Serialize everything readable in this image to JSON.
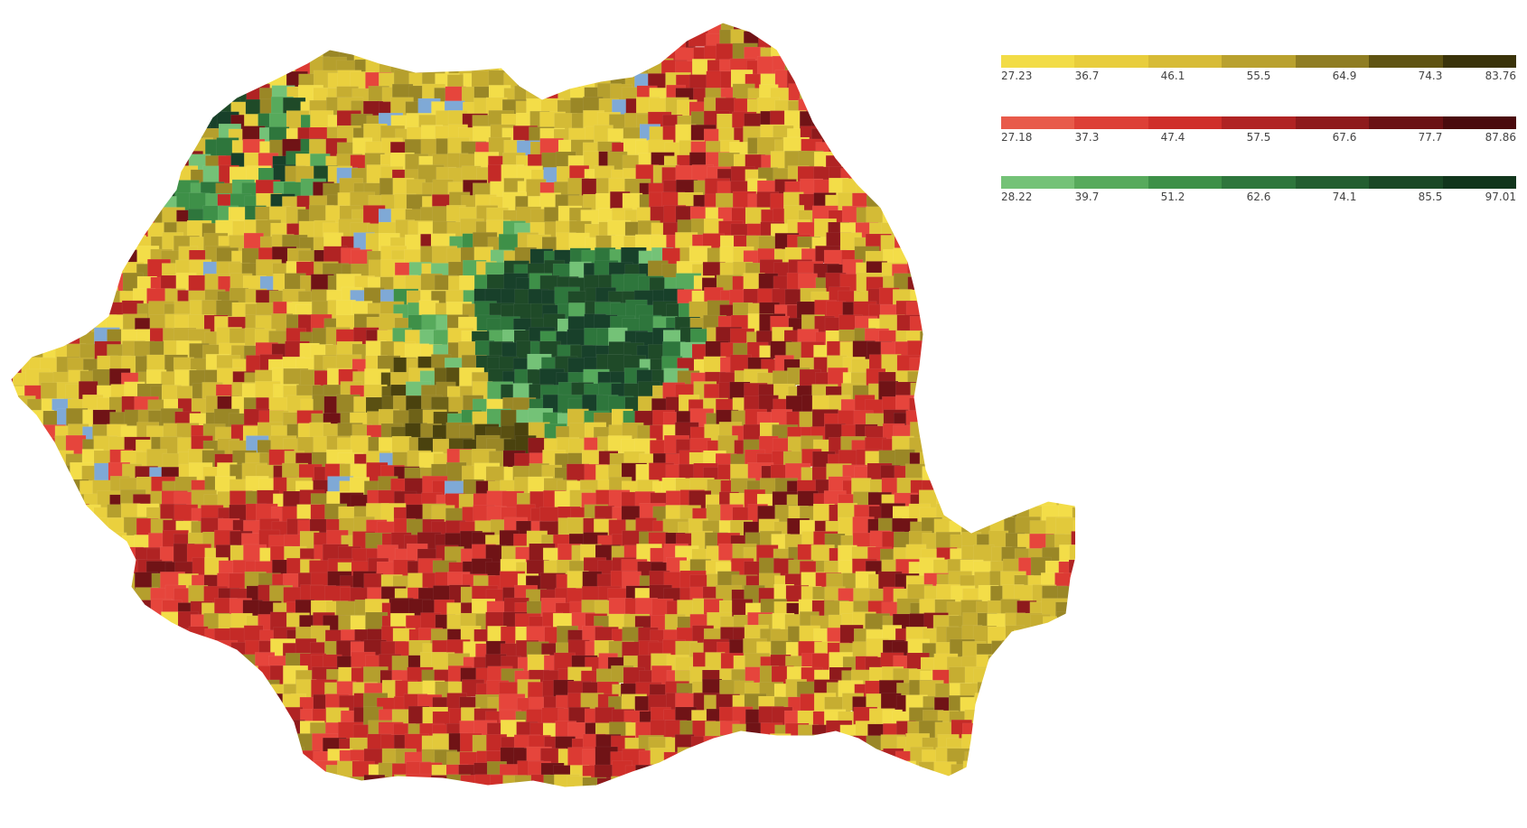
{
  "legends": [
    {
      "name": "yellow",
      "colors": [
        "#f2dc46",
        "#e8cd3c",
        "#d7bb36",
        "#b9a12e",
        "#8f7d22",
        "#5f5312",
        "#3a330a"
      ],
      "ticks": [
        "27.23",
        "36.7",
        "46.1",
        "55.5",
        "64.9",
        "74.3",
        "83.76"
      ]
    },
    {
      "name": "red",
      "colors": [
        "#e85a4a",
        "#dd3f36",
        "#cf2f2a",
        "#b02323",
        "#8e1a1c",
        "#6b1114",
        "#4a0a0d"
      ],
      "ticks": [
        "27.18",
        "37.3",
        "47.4",
        "57.5",
        "67.6",
        "77.7",
        "87.86"
      ]
    },
    {
      "name": "green",
      "colors": [
        "#74c277",
        "#57aa5c",
        "#3e9048",
        "#2e763c",
        "#235e30",
        "#1a4826",
        "#11351c"
      ],
      "ticks": [
        "28.22",
        "39.7",
        "51.2",
        "62.6",
        "74.1",
        "85.5",
        "97.01"
      ]
    }
  ],
  "map": {
    "palette_yellow": [
      "#f3dd48",
      "#ead03e",
      "#e2c93b",
      "#d4bb36",
      "#c6ad31",
      "#b59f2d",
      "#9a8726"
    ],
    "palette_red": [
      "#e6453c",
      "#dc3a33",
      "#cf2f2a",
      "#c42a27",
      "#b02323",
      "#8e1a1c",
      "#701316"
    ],
    "palette_green": [
      "#74c277",
      "#57aa5c",
      "#3e9048",
      "#2e763c",
      "#1f4a28",
      "#18402a"
    ],
    "palette_darkolive": [
      "#9a8726",
      "#6e6218",
      "#5a5012",
      "#4a420e"
    ],
    "water": "#7fa9d6"
  }
}
